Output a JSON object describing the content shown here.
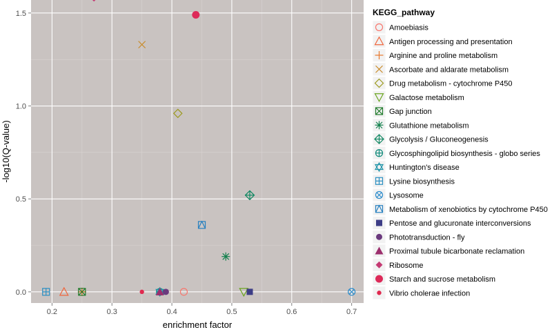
{
  "chart_data": {
    "type": "scatter",
    "xlabel": "enrichment factor",
    "ylabel": "-log10(Q-value)",
    "xlim": [
      0.165,
      0.72
    ],
    "ylim": [
      -0.06,
      1.57
    ],
    "x_ticks": [
      0.2,
      0.3,
      0.4,
      0.5,
      0.6,
      0.7
    ],
    "x_tick_labels": [
      "0.2",
      "0.3",
      "0.4",
      "0.5",
      "0.6",
      "0.7"
    ],
    "y_ticks": [
      0.0,
      0.5,
      1.0,
      1.5
    ],
    "y_tick_labels": [
      "0.0",
      "0.5",
      "1.0",
      "1.5"
    ],
    "legend_title": "KEGG_pathway",
    "legend_position": "right",
    "colors": {
      "panel": "#c9c3c1",
      "grid_major": "#ffffff",
      "grid_minor": "#d9d4d2",
      "axis_text": "#4d4d4d",
      "legend_key": "#f2f2f2"
    },
    "series": [
      {
        "name": "Amoebiasis",
        "shape": "circle-open",
        "color": "#f8766d",
        "points": [
          [
            0.42,
            0.0
          ]
        ]
      },
      {
        "name": "Antigen processing and presentation",
        "shape": "triangle-open",
        "color": "#f0653c",
        "points": [
          [
            0.22,
            0.0
          ]
        ]
      },
      {
        "name": "Arginine and proline metabolism",
        "shape": "plus",
        "color": "#e8782c",
        "points": [
          [
            0.25,
            0.0
          ]
        ]
      },
      {
        "name": "Ascorbate and aldarate metabolism",
        "shape": "cross",
        "color": "#c98a26",
        "points": [
          [
            0.35,
            1.33
          ]
        ]
      },
      {
        "name": "Drug metabolism - cytochrome P450",
        "shape": "diamond-open",
        "color": "#9c9a1e",
        "points": [
          [
            0.41,
            0.96
          ]
        ]
      },
      {
        "name": "Galactose metabolism",
        "shape": "triangle-down-open",
        "color": "#6aa51f",
        "points": [
          [
            0.52,
            0.0
          ]
        ]
      },
      {
        "name": "Gap junction",
        "shape": "square-cross",
        "color": "#1f7a2a",
        "points": [
          [
            0.25,
            0.0
          ]
        ]
      },
      {
        "name": "Glutathione metabolism",
        "shape": "asterisk",
        "color": "#12814d",
        "points": [
          [
            0.49,
            0.19
          ]
        ]
      },
      {
        "name": "Glycolysis / Gluconeogenesis",
        "shape": "diamond-plus",
        "color": "#0e8761",
        "points": [
          [
            0.53,
            0.52
          ]
        ]
      },
      {
        "name": "Glycosphingolipid biosynthesis - globo series",
        "shape": "circle-plus",
        "color": "#0e8a7a",
        "points": [
          [
            0.38,
            0.0
          ]
        ]
      },
      {
        "name": "Huntington's disease",
        "shape": "star-david",
        "color": "#1e93a8",
        "points": [
          [
            0.38,
            0.0
          ]
        ]
      },
      {
        "name": "Lysine biosynthesis",
        "shape": "square-plus",
        "color": "#2a8fc2",
        "points": [
          [
            0.19,
            0.0
          ]
        ]
      },
      {
        "name": "Lysosome",
        "shape": "circle-cross",
        "color": "#2b8ccc",
        "points": [
          [
            0.7,
            0.0
          ]
        ]
      },
      {
        "name": "Metabolism of xenobiotics by cytochrome P450",
        "shape": "square-triangle",
        "color": "#2680c0",
        "points": [
          [
            0.45,
            0.36
          ]
        ]
      },
      {
        "name": "Pentose and glucuronate interconversions",
        "shape": "square",
        "color": "#3d3d86",
        "points": [
          [
            0.53,
            0.0
          ]
        ]
      },
      {
        "name": "Phototransduction - fly",
        "shape": "circle",
        "color": "#6b3a7e",
        "points": [
          [
            0.39,
            0.0
          ]
        ]
      },
      {
        "name": "Proximal tubule bicarbonate reclamation",
        "shape": "triangle",
        "color": "#9c2f6d",
        "points": [
          [
            0.38,
            0.0
          ]
        ]
      },
      {
        "name": "Ribosome",
        "shape": "diamond",
        "color": "#c43a73",
        "points": [
          [
            0.27,
            1.58
          ]
        ]
      },
      {
        "name": "Starch and sucrose metabolism",
        "shape": "circle-big",
        "color": "#dd2a59",
        "points": [
          [
            0.44,
            1.49
          ]
        ]
      },
      {
        "name": "Vibrio cholerae infection",
        "shape": "circle-small",
        "color": "#e0294f",
        "points": [
          [
            0.35,
            0.0
          ]
        ]
      }
    ]
  }
}
